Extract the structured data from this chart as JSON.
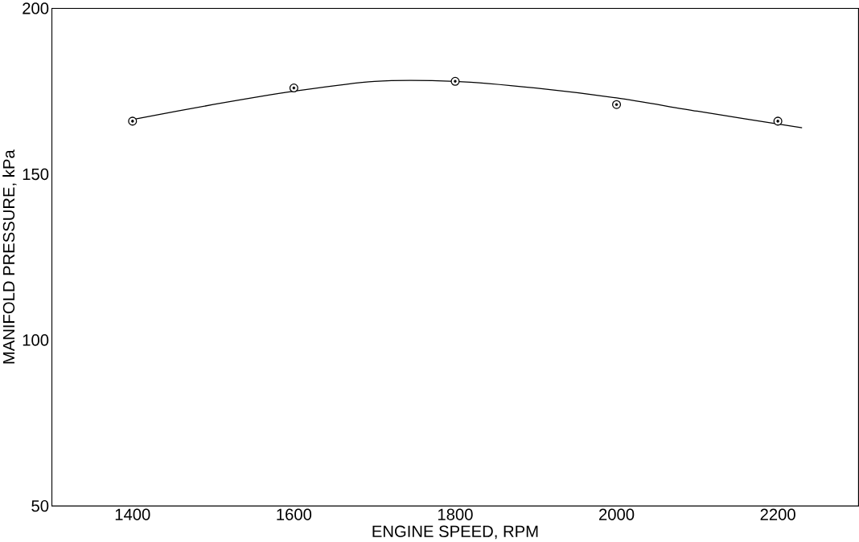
{
  "chart_data": {
    "type": "scatter",
    "xlabel": "ENGINE SPEED, RPM",
    "ylabel": "MANIFOLD PRESSURE, kPa",
    "xlim": [
      1300,
      2300
    ],
    "ylim": [
      50,
      200
    ],
    "xticks": [
      1400,
      1600,
      1800,
      2000,
      2200
    ],
    "yticks": [
      50,
      100,
      150,
      200
    ],
    "marker": "circle",
    "grid": false,
    "series": [
      {
        "color": "#000000",
        "x": [
          1400,
          1600,
          1800,
          2000,
          2200
        ],
        "values": [
          166,
          176,
          178,
          171,
          166
        ]
      },
      {
        "type": "line",
        "color": "#000000",
        "marker": "none",
        "x": [
          1400,
          1500,
          1600,
          1700,
          1800,
          1900,
          2000,
          2100,
          2230
        ],
        "values": [
          166.5,
          171,
          175,
          178,
          178,
          176,
          173,
          169,
          164
        ]
      }
    ]
  }
}
